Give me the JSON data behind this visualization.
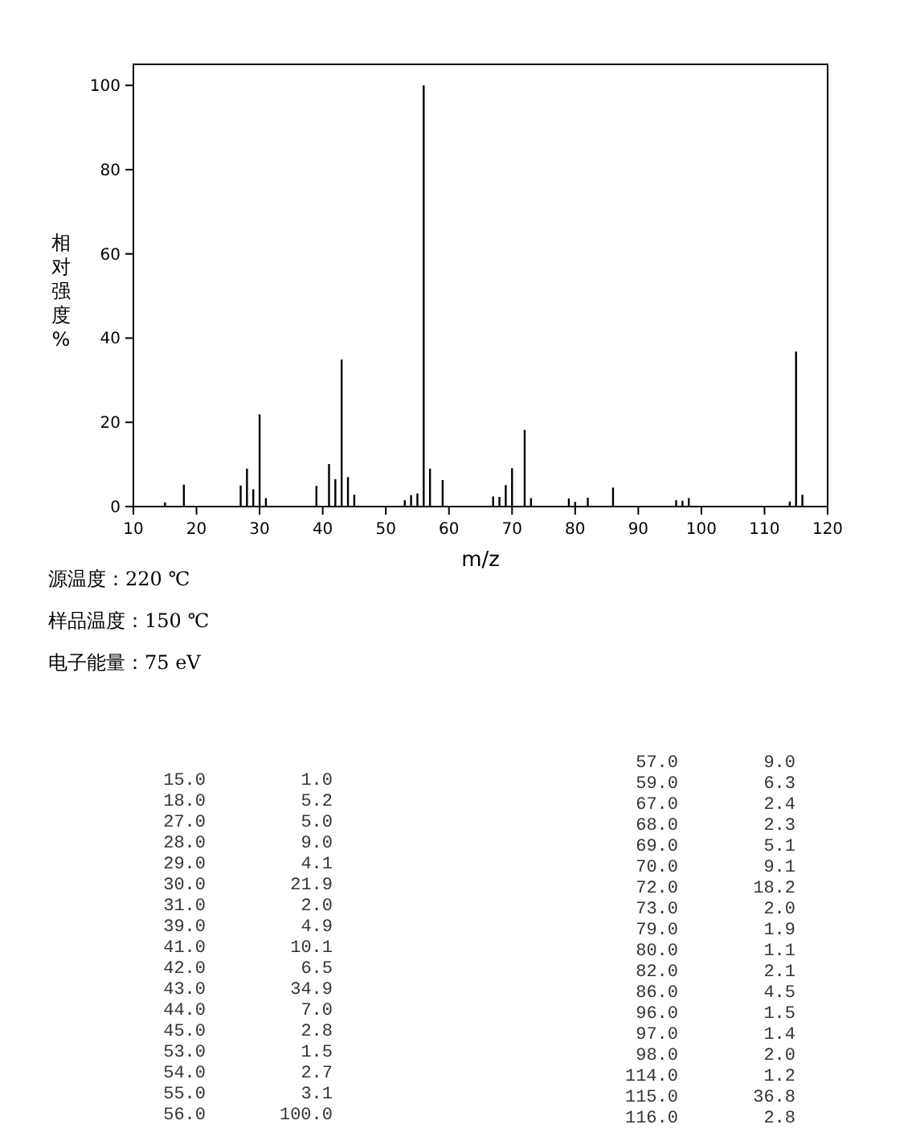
{
  "chart_data": [
    {
      "type": "bar",
      "xlabel": "m/z",
      "ylabel": "相对强度%",
      "x": [
        15,
        18,
        27,
        28,
        29,
        30,
        31,
        39,
        41,
        42,
        43,
        44,
        45,
        53,
        54,
        55,
        56,
        57,
        59,
        67,
        68,
        69,
        70,
        72,
        73,
        79,
        80,
        82,
        86,
        96,
        97,
        98,
        114,
        115,
        116
      ],
      "values": [
        1.0,
        5.2,
        5.0,
        9.0,
        4.1,
        21.9,
        2.0,
        4.9,
        10.1,
        6.5,
        34.9,
        7.0,
        2.8,
        1.5,
        2.7,
        3.1,
        100.0,
        9.0,
        6.3,
        2.4,
        2.3,
        5.1,
        9.1,
        18.2,
        2.0,
        1.9,
        1.1,
        2.1,
        4.5,
        1.5,
        1.4,
        2.0,
        1.2,
        36.8,
        2.8
      ],
      "color": "#000000",
      "xlim": [
        10,
        120
      ],
      "xticks": [
        10,
        20,
        30,
        40,
        50,
        60,
        70,
        80,
        90,
        100,
        110,
        120
      ],
      "ylim": [
        0,
        105
      ],
      "yticks": [
        0,
        20,
        40,
        60,
        80,
        100
      ],
      "annotations": [
        "源温度：220 ℃",
        "样品温度：150 ℃",
        "电子能量：75 eV"
      ]
    },
    {
      "type": "other",
      "categories": [
        "15.0",
        "18.0",
        "27.0",
        "28.0",
        "29.0",
        "30.0",
        "31.0",
        "39.0",
        "41.0",
        "42.0",
        "43.0",
        "44.0",
        "45.0",
        "53.0",
        "54.0",
        "55.0",
        "56.0",
        "57.0",
        "59.0",
        "67.0",
        "68.0",
        "69.0",
        "70.0",
        "72.0",
        "73.0",
        "79.0",
        "80.0",
        "82.0",
        "86.0",
        "96.0",
        "97.0",
        "98.0",
        "114.0",
        "115.0",
        "116.0"
      ],
      "value_labels": [
        "1.0",
        "5.2",
        "5.0",
        "9.0",
        "4.1",
        "21.9",
        "2.0",
        "4.9",
        "10.1",
        "6.5",
        "34.9",
        "7.0",
        "2.8",
        "1.5",
        "2.7",
        "3.1",
        "100.0",
        "9.0",
        "6.3",
        "2.4",
        "2.3",
        "5.1",
        "9.1",
        "18.2",
        "2.0",
        "1.9",
        "1.1",
        "2.1",
        "4.5",
        "1.5",
        "1.4",
        "2.0",
        "1.2",
        "36.8",
        "2.8"
      ]
    }
  ]
}
